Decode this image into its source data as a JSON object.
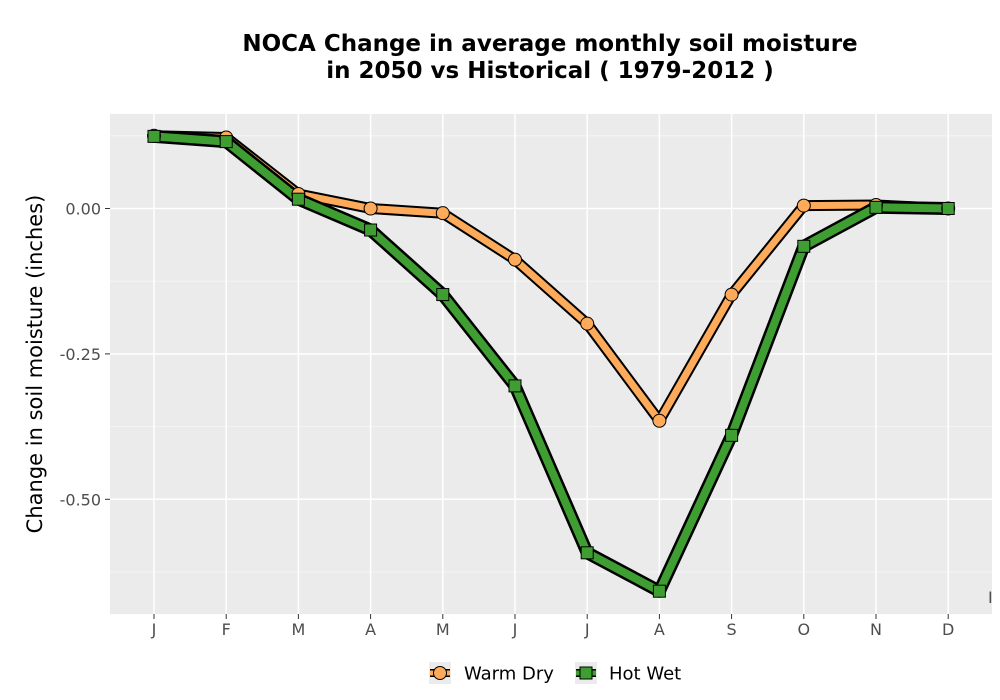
{
  "chart_data": {
    "type": "line",
    "title_line1": "NOCA  Change in average monthly soil moisture",
    "title_line2": "in 2050 vs Historical ( 1979-2012 )",
    "xlabel": "",
    "ylabel": "Change in soil moisture (inches)",
    "categories": [
      "J",
      "F",
      "M",
      "A",
      "M",
      "J",
      "J",
      "A",
      "S",
      "O",
      "N",
      "D"
    ],
    "ylim": [
      -0.7,
      0.16
    ],
    "yticks": [
      0.0,
      -0.25,
      -0.5
    ],
    "ytick_labels": [
      "0.00",
      "-0.25",
      "-0.50"
    ],
    "grid": true,
    "legend_position": "bottom",
    "series": [
      {
        "name": "Warm Dry",
        "color": "#fdaa5a",
        "marker": "circle",
        "values": [
          0.125,
          0.122,
          0.025,
          0.0,
          -0.008,
          -0.088,
          -0.198,
          -0.365,
          -0.148,
          0.005,
          0.006,
          0.0
        ]
      },
      {
        "name": "Hot Wet",
        "color": "#3f9e32",
        "marker": "square",
        "values": [
          0.124,
          0.115,
          0.016,
          -0.037,
          -0.148,
          -0.305,
          -0.592,
          -0.658,
          -0.39,
          -0.065,
          0.002,
          0.0
        ]
      }
    ]
  }
}
